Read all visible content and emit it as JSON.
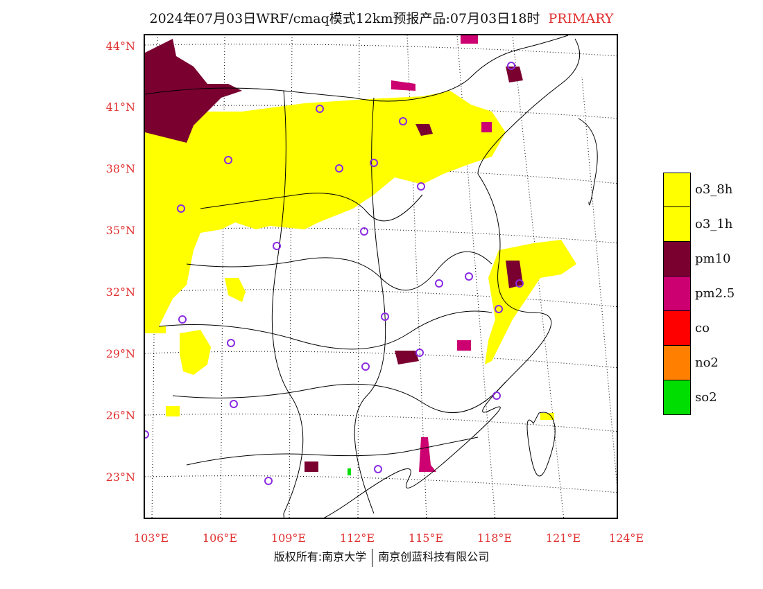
{
  "title": {
    "main": "2024年07月03日WRF/cmaq模式12km预报产品:07月03日18时",
    "tag": "PRIMARY"
  },
  "latitude_labels": [
    "44°N",
    "41°N",
    "38°N",
    "35°N",
    "32°N",
    "29°N",
    "26°N",
    "23°N"
  ],
  "longitude_labels": [
    "103°E",
    "106°E",
    "109°E",
    "112°E",
    "115°E",
    "118°E",
    "121°E",
    "124°E"
  ],
  "legend": [
    {
      "label": "o3_8h",
      "color": "#ffff00"
    },
    {
      "label": "o3_1h",
      "color": "#ffff00"
    },
    {
      "label": "pm10",
      "color": "#7a0030"
    },
    {
      "label": "pm2.5",
      "color": "#cc0070"
    },
    {
      "label": "co",
      "color": "#ff0000"
    },
    {
      "label": "no2",
      "color": "#ff7f00"
    },
    {
      "label": "so2",
      "color": "#00dd00"
    }
  ],
  "footer": {
    "left": "版权所有:南京大学",
    "right": "南京创蓝科技有限公司"
  },
  "colors": {
    "accent_text": "#e03030",
    "o3": "#ffff00",
    "pm10": "#7a0030",
    "pm25": "#cc0070",
    "station_marker": "#8a2be2"
  }
}
